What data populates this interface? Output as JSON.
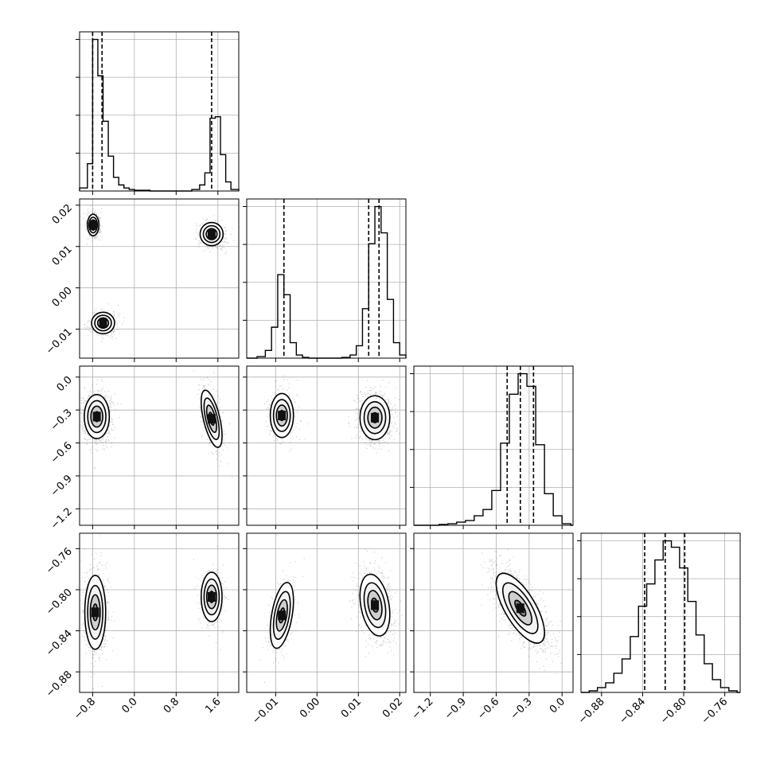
{
  "chart_data": {
    "type": "corner",
    "title": "",
    "colors": {
      "line": "#000000",
      "grid": "#b0b0b0",
      "background": "#ffffff"
    },
    "grid": true,
    "params": [
      {
        "range": [
          -1.05,
          2.0
        ],
        "ticks": [
          -0.8,
          0.0,
          0.8,
          1.6
        ],
        "tick_labels": [
          "−0.8",
          "0.0",
          "0.8",
          "1.6"
        ],
        "quantiles": [
          -0.8,
          -0.62,
          1.48
        ],
        "hist": {
          "edges": [
            -1.05,
            -0.9,
            -0.8,
            -0.7,
            -0.6,
            -0.5,
            -0.4,
            -0.3,
            -0.2,
            -0.1,
            0.0,
            0.15,
            0.3,
            0.5,
            0.7,
            0.9,
            1.1,
            1.25,
            1.35,
            1.45,
            1.55,
            1.65,
            1.75,
            1.85,
            2.0
          ],
          "counts": [
            2,
            18,
            100,
            76,
            46,
            23,
            9,
            4,
            2,
            1,
            0.5,
            0.5,
            0,
            0,
            0,
            0,
            1,
            4,
            12,
            48,
            49,
            24,
            6,
            1
          ]
        },
        "clusters": [
          {
            "center": -0.78,
            "std": 0.06,
            "weight": 0.38
          },
          {
            "center": -0.6,
            "std": 0.1,
            "weight": 0.28
          },
          {
            "center": 1.48,
            "std": 0.11,
            "weight": 0.34
          }
        ]
      },
      {
        "range": [
          -0.017,
          0.0215
        ],
        "ticks": [
          -0.01,
          0.0,
          0.01,
          0.02
        ],
        "tick_labels": [
          "−0.01",
          "0.00",
          "0.01",
          "0.02"
        ],
        "quantiles": [
          -0.008,
          0.0125,
          0.015
        ],
        "hist": {
          "edges": [
            -0.017,
            -0.0145,
            -0.0125,
            -0.011,
            -0.0095,
            -0.008,
            -0.0065,
            -0.005,
            -0.0035,
            -0.002,
            0.0,
            0.002,
            0.004,
            0.006,
            0.008,
            0.0095,
            0.011,
            0.0125,
            0.014,
            0.0155,
            0.017,
            0.0185,
            0.02,
            0.0215
          ],
          "counts": [
            0,
            1,
            5,
            20,
            54,
            41,
            10,
            2,
            0.5,
            0,
            0,
            0,
            0,
            0.5,
            2,
            8,
            32,
            74,
            98,
            81,
            38,
            10,
            2
          ]
        }
      },
      {
        "range": [
          -1.35,
          0.1
        ],
        "ticks": [
          -1.2,
          -0.9,
          -0.6,
          -0.3,
          0.0
        ],
        "tick_labels": [
          "−1.2",
          "−0.9",
          "−0.6",
          "−0.3",
          "0.0"
        ],
        "quantiles": [
          -0.5,
          -0.38,
          -0.26
        ],
        "hist": {
          "edges": [
            -1.35,
            -1.28,
            -1.2,
            -1.12,
            -1.04,
            -0.96,
            -0.88,
            -0.8,
            -0.72,
            -0.64,
            -0.56,
            -0.48,
            -0.4,
            -0.32,
            -0.24,
            -0.16,
            -0.08,
            0.0,
            0.08,
            0.1
          ],
          "counts": [
            0,
            0,
            0,
            0.5,
            1,
            2,
            3,
            6,
            10,
            22,
            52,
            83,
            96,
            88,
            51,
            20,
            6,
            1,
            0
          ]
        }
      },
      {
        "range": [
          -0.9,
          -0.745
        ],
        "ticks": [
          -0.88,
          -0.84,
          -0.8,
          -0.76
        ],
        "tick_labels": [
          "−0.88",
          "−0.84",
          "−0.80",
          "−0.76"
        ],
        "quantiles": [
          -0.838,
          -0.818,
          -0.799
        ],
        "hist": {
          "edges": [
            -0.9,
            -0.892,
            -0.884,
            -0.876,
            -0.868,
            -0.86,
            -0.852,
            -0.844,
            -0.836,
            -0.828,
            -0.82,
            -0.812,
            -0.804,
            -0.796,
            -0.788,
            -0.78,
            -0.772,
            -0.764,
            -0.756,
            -0.748,
            -0.745
          ],
          "counts": [
            0,
            1,
            3,
            6,
            12,
            21,
            35,
            54,
            68,
            83,
            95,
            91,
            78,
            57,
            36,
            18,
            8,
            3,
            1,
            0
          ]
        }
      }
    ],
    "blobs": [
      {
        "i": 1,
        "j": 0,
        "items": [
          {
            "cx": -0.79,
            "cy": 0.0152,
            "sx": 0.055,
            "sy": 0.0013,
            "rho": 0.0,
            "w": 0.38
          },
          {
            "cx": -0.6,
            "cy": -0.0085,
            "sx": 0.11,
            "sy": 0.0013,
            "rho": 0.0,
            "w": 0.28
          },
          {
            "cx": 1.48,
            "cy": 0.013,
            "sx": 0.11,
            "sy": 0.0014,
            "rho": 0.0,
            "w": 0.34
          }
        ]
      },
      {
        "i": 2,
        "j": 0,
        "items": [
          {
            "cx": -0.72,
            "cy": -0.36,
            "sx": 0.12,
            "sy": 0.1,
            "rho": 0.0,
            "w": 0.66
          },
          {
            "cx": 1.48,
            "cy": -0.38,
            "sx": 0.1,
            "sy": 0.13,
            "rho": -0.6,
            "w": 0.34
          }
        ]
      },
      {
        "i": 2,
        "j": 1,
        "items": [
          {
            "cx": -0.0085,
            "cy": -0.35,
            "sx": 0.0014,
            "sy": 0.1,
            "rho": 0.0,
            "w": 0.3
          },
          {
            "cx": 0.014,
            "cy": -0.37,
            "sx": 0.0018,
            "sy": 0.1,
            "rho": 0.0,
            "w": 0.7
          }
        ]
      },
      {
        "i": 3,
        "j": 0,
        "items": [
          {
            "cx": -0.75,
            "cy": -0.822,
            "sx": 0.1,
            "sy": 0.018,
            "rho": 0.0,
            "w": 0.66
          },
          {
            "cx": 1.48,
            "cy": -0.807,
            "sx": 0.1,
            "sy": 0.012,
            "rho": 0.0,
            "w": 0.34
          }
        ]
      },
      {
        "i": 3,
        "j": 1,
        "items": [
          {
            "cx": -0.0085,
            "cy": -0.825,
            "sx": 0.0014,
            "sy": 0.016,
            "rho": 0.45,
            "w": 0.3
          },
          {
            "cx": 0.014,
            "cy": -0.815,
            "sx": 0.0018,
            "sy": 0.015,
            "rho": -0.3,
            "w": 0.7
          }
        ]
      },
      {
        "i": 3,
        "j": 2,
        "items": [
          {
            "cx": -0.38,
            "cy": -0.818,
            "sx": 0.11,
            "sy": 0.017,
            "rho": -0.7,
            "w": 1.0
          }
        ]
      }
    ]
  }
}
